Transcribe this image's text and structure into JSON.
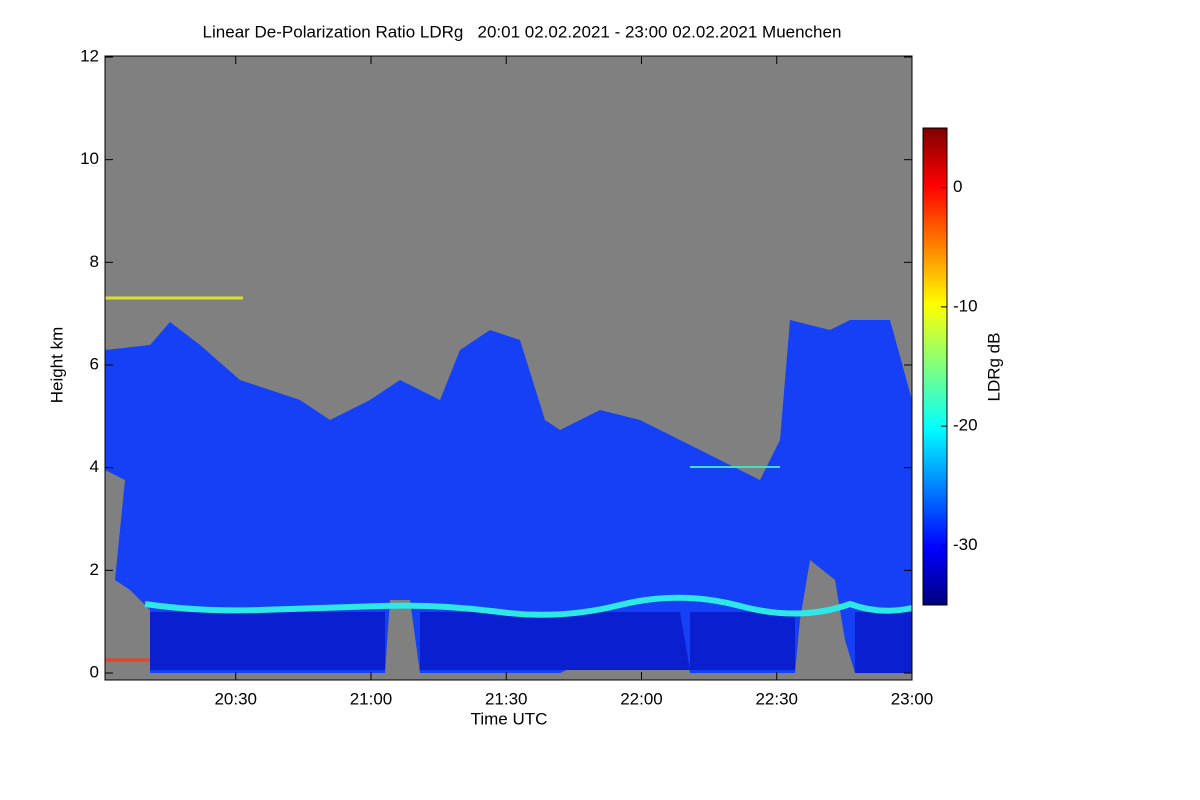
{
  "chart_data": {
    "type": "heatmap",
    "title": "Linear De-Polarization Ratio LDRg   20:01 02.02.2021 - 23:00 02.02.2021 Muenchen",
    "x_label": "Time UTC",
    "y_label": "Height km",
    "colorbar_label": "LDRg dB",
    "xlim": [
      "20:01",
      "23:00"
    ],
    "xticks": [
      "20:30",
      "21:00",
      "21:30",
      "22:00",
      "22:30",
      "23:00"
    ],
    "ylim": [
      0,
      12
    ],
    "yticks": [
      0,
      2,
      4,
      6,
      8,
      10,
      12
    ],
    "zlim": [
      -35,
      5
    ],
    "zticks": [
      -30,
      -20,
      -10,
      0
    ],
    "colormap": "jet",
    "background": "#808080"
  }
}
